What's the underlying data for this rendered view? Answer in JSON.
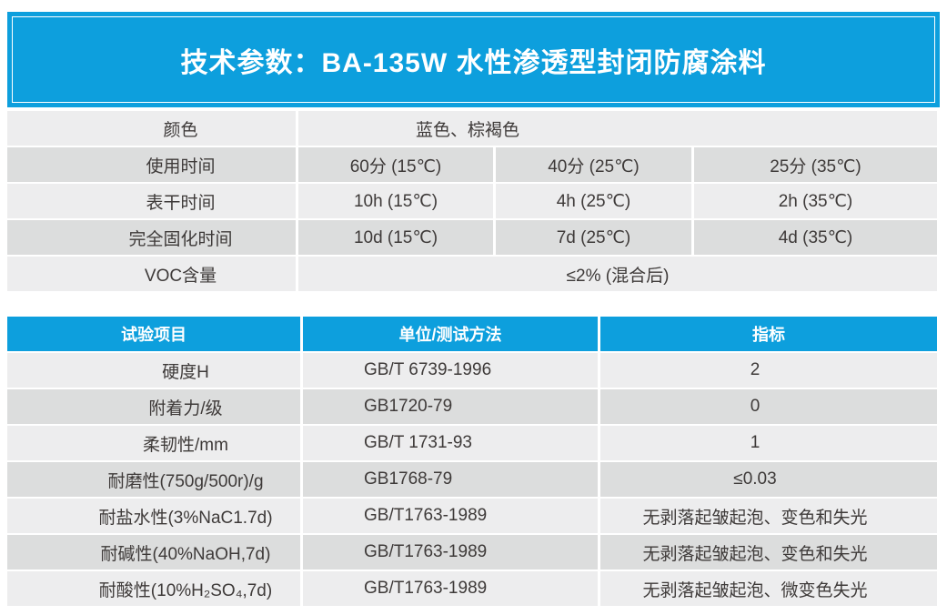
{
  "banner": {
    "title": "技术参数：BA-135W 水性渗透型封闭防腐涂料"
  },
  "colors": {
    "accent_blue": "#0d9fdd",
    "row_light": "#ededee",
    "row_dark": "#dcdddd",
    "text_dark": "#3e3a39",
    "header_text": "#ffffff",
    "background": "#ffffff"
  },
  "spec_table": {
    "rows": [
      {
        "label": "颜色",
        "type": "span",
        "value": "蓝色、棕褐色"
      },
      {
        "label": "使用时间",
        "type": "cols",
        "values": [
          "60分 (15℃)",
          "40分 (25℃)",
          "25分 (35℃)"
        ]
      },
      {
        "label": "表干时间",
        "type": "cols",
        "values": [
          "10h (15℃)",
          "4h (25℃)",
          "2h (35℃)"
        ]
      },
      {
        "label": "完全固化时间",
        "type": "cols",
        "values": [
          "10d (15℃)",
          "7d (25℃)",
          "4d (35℃)"
        ]
      },
      {
        "label": "VOC含量",
        "type": "span_center",
        "value": "≤2% (混合后)"
      }
    ]
  },
  "test_table": {
    "headers": [
      "试验项目",
      "单位/测试方法",
      "指标"
    ],
    "rows": [
      {
        "item": "硬度H",
        "method": "GB/T 6739-1996",
        "result": "2"
      },
      {
        "item": "附着力/级",
        "method": "GB1720-79",
        "result": "0"
      },
      {
        "item": "柔韧性/mm",
        "method": "GB/T 1731-93",
        "result": "1"
      },
      {
        "item": "耐磨性(750g/500r)/g",
        "method": "GB1768-79",
        "result": "≤0.03"
      },
      {
        "item": "耐盐水性(3%NaC1.7d)",
        "method": "GB/T1763-1989",
        "result": "无剥落起皱起泡、变色和失光"
      },
      {
        "item": "耐碱性(40%NaOH,7d)",
        "method": "GB/T1763-1989",
        "result": "无剥落起皱起泡、变色和失光"
      },
      {
        "item": "耐酸性(10%H₂SO₄,7d)",
        "method": "GB/T1763-1989",
        "result": "无剥落起皱起泡、微变色失光"
      }
    ]
  }
}
